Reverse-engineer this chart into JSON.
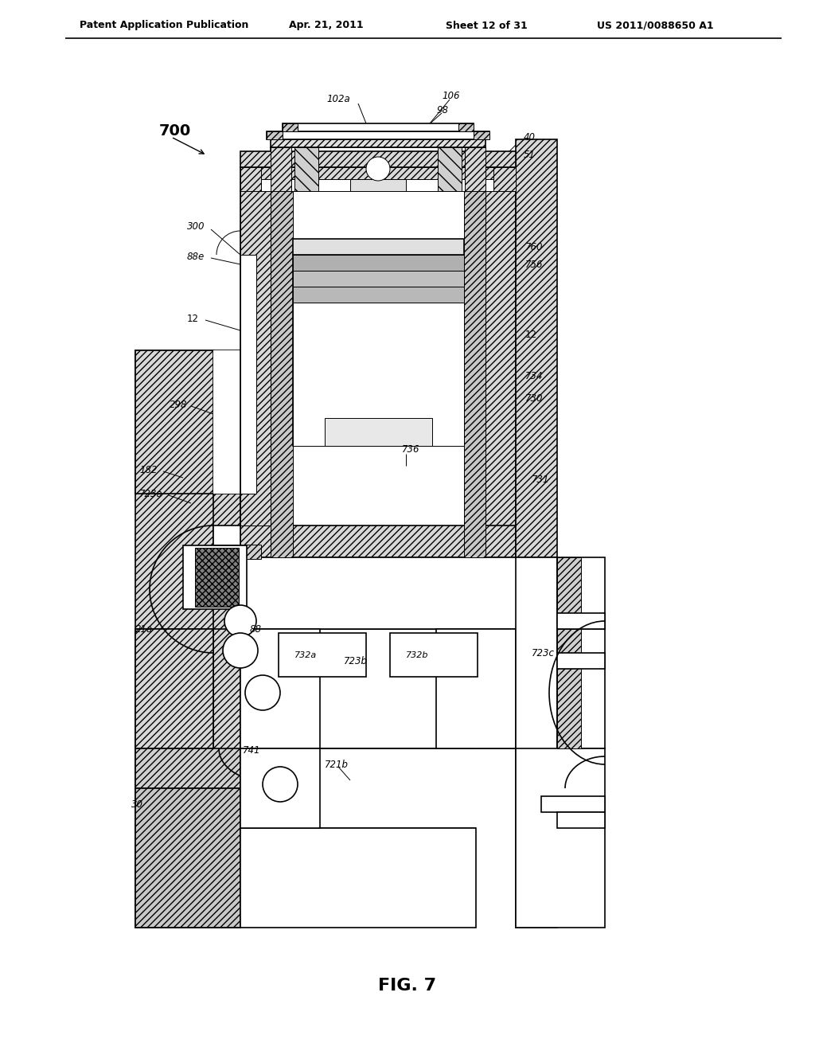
{
  "bg_color": "#ffffff",
  "header_title": "Patent Application Publication",
  "header_date": "Apr. 21, 2011",
  "header_sheet": "Sheet 12 of 31",
  "header_patent": "US 2011/0088650 A1",
  "fig_label": "FIG. 7"
}
